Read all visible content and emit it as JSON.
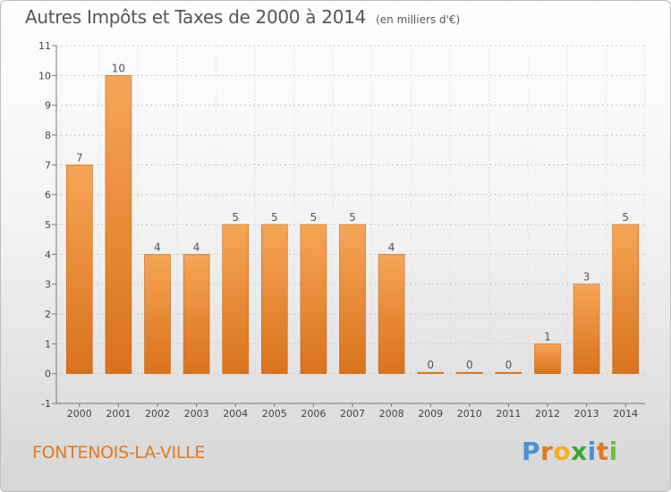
{
  "chart_data": {
    "type": "bar",
    "title": "Autres Impôts et Taxes de 2000 à 2014",
    "unit_note": "(en milliers d'€)",
    "categories": [
      "2000",
      "2001",
      "2002",
      "2003",
      "2004",
      "2005",
      "2006",
      "2007",
      "2008",
      "2009",
      "2010",
      "2011",
      "2012",
      "2013",
      "2014"
    ],
    "values": [
      7,
      10,
      4,
      4,
      5,
      5,
      5,
      5,
      4,
      0,
      0,
      0,
      1,
      3,
      5
    ],
    "data_labels": [
      "7",
      "10",
      "4",
      "4",
      "5",
      "5",
      "5",
      "5",
      "4",
      "0",
      "0",
      "0",
      "1",
      "3",
      "5"
    ],
    "y_ticks": [
      -1,
      0,
      1,
      2,
      3,
      4,
      5,
      6,
      7,
      8,
      9,
      10,
      11
    ],
    "ylim": [
      -1,
      11
    ],
    "grid": "horizontal dashed",
    "bar_color_top": "#f6a556",
    "bar_color_bottom": "#d9721c"
  },
  "place_name": "FONTENOIS-LA-VILLE",
  "brand": "Proxiti",
  "brand_colors": [
    "#4a90d9",
    "#e07a1f",
    "#f2b21b",
    "#3aa63a",
    "#4a90d9",
    "#e07a1f",
    "#6dbf3a"
  ]
}
